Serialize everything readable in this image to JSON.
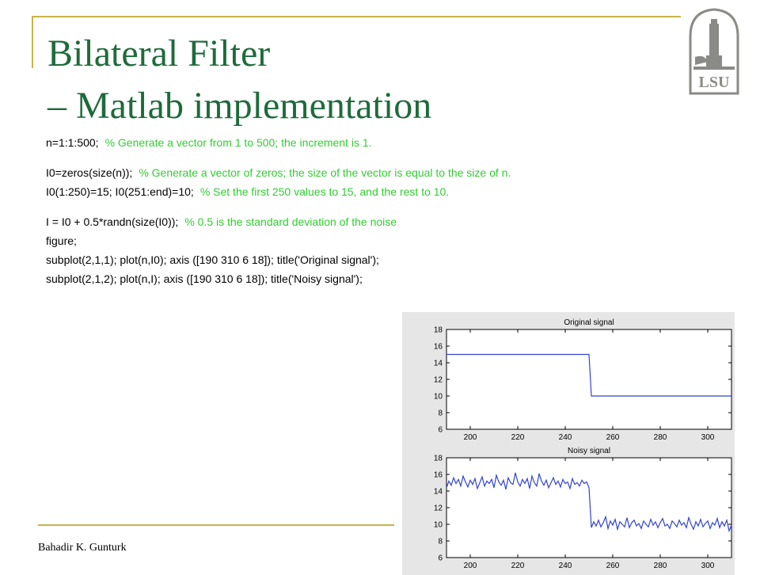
{
  "colors": {
    "title": "#1e6b3a",
    "accent_rule": "#c8b44a",
    "code": "#000000",
    "comment": "#33cc33",
    "plot_line": "#3344cc",
    "logo_fill": "#8a8a86"
  },
  "slide": {
    "title_line1": "Bilateral Filter",
    "title_line2": "– Matlab implementation",
    "footer": "Bahadir K. Gunturk",
    "logo_icon": "lsu-tower-logo",
    "logo_text": "LSU"
  },
  "code_lines": [
    {
      "code": "n=1:1:500;",
      "comment": "% Generate a vector from 1 to 500; the increment is 1."
    },
    {
      "code": "",
      "comment": ""
    },
    {
      "code": "I0=zeros(size(n));",
      "comment": "% Generate a vector of zeros; the size of the vector is equal to the size of n."
    },
    {
      "code": "I0(1:250)=15;  I0(251:end)=10;",
      "comment": "% Set the first 250 values to 15, and the rest to 10."
    },
    {
      "code": "",
      "comment": ""
    },
    {
      "code": "I = I0 + 0.5*randn(size(I0));",
      "comment": "% 0.5 is the standard deviation of the noise"
    },
    {
      "code": "figure;",
      "comment": ""
    },
    {
      "code": "subplot(2,1,1);  plot(n,I0);  axis ([190 310 6 18]);  title('Original signal');",
      "comment": ""
    },
    {
      "code": "subplot(2,1,2);  plot(n,I);  axis ([190 310 6 18]);  title('Noisy signal');",
      "comment": ""
    }
  ],
  "chart_data": [
    {
      "type": "line",
      "title": "Original signal",
      "xlim": [
        190,
        310
      ],
      "ylim": [
        6,
        18
      ],
      "xticks": [
        200,
        220,
        240,
        260,
        280,
        300
      ],
      "yticks": [
        6,
        8,
        10,
        12,
        14,
        16,
        18
      ],
      "grid": false,
      "series": [
        {
          "x": [
            190,
            250,
            251,
            310
          ],
          "y": [
            15,
            15,
            10,
            10
          ]
        }
      ]
    },
    {
      "type": "line",
      "title": "Noisy signal",
      "xlim": [
        190,
        310
      ],
      "ylim": [
        6,
        18
      ],
      "xticks": [
        200,
        220,
        240,
        260,
        280,
        300
      ],
      "yticks": [
        6,
        8,
        10,
        12,
        14,
        16,
        18
      ],
      "grid": false,
      "series": [
        {
          "x": [
            190,
            191,
            192,
            193,
            194,
            195,
            196,
            197,
            198,
            199,
            200,
            201,
            202,
            203,
            204,
            205,
            206,
            207,
            208,
            209,
            210,
            211,
            212,
            213,
            214,
            215,
            216,
            217,
            218,
            219,
            220,
            221,
            222,
            223,
            224,
            225,
            226,
            227,
            228,
            229,
            230,
            231,
            232,
            233,
            234,
            235,
            236,
            237,
            238,
            239,
            240,
            241,
            242,
            243,
            244,
            245,
            246,
            247,
            248,
            249,
            250,
            251,
            252,
            253,
            254,
            255,
            256,
            257,
            258,
            259,
            260,
            261,
            262,
            263,
            264,
            265,
            266,
            267,
            268,
            269,
            270,
            271,
            272,
            273,
            274,
            275,
            276,
            277,
            278,
            279,
            280,
            281,
            282,
            283,
            284,
            285,
            286,
            287,
            288,
            289,
            290,
            291,
            292,
            293,
            294,
            295,
            296,
            297,
            298,
            299,
            300,
            301,
            302,
            303,
            304,
            305,
            306,
            307,
            308,
            309,
            310
          ],
          "y": [
            14.4,
            15.2,
            14.7,
            15.6,
            14.9,
            15.4,
            14.6,
            15.8,
            15.1,
            14.5,
            15.3,
            14.8,
            15.5,
            14.3,
            15.0,
            15.7,
            14.6,
            15.2,
            14.9,
            15.4,
            14.4,
            15.9,
            15.1,
            14.7,
            15.3,
            14.2,
            15.6,
            15.0,
            14.8,
            16.2,
            15.1,
            14.6,
            15.4,
            14.9,
            15.5,
            14.3,
            15.8,
            15.0,
            14.6,
            16.1,
            15.2,
            14.7,
            15.3,
            14.4,
            15.0,
            15.6,
            14.8,
            15.2,
            14.5,
            15.4,
            14.9,
            15.1,
            14.3,
            15.5,
            14.8,
            15.0,
            14.6,
            15.3,
            14.9,
            15.1,
            14.4,
            9.6,
            10.3,
            9.8,
            10.5,
            9.7,
            10.2,
            10.9,
            9.5,
            10.4,
            9.9,
            10.6,
            9.4,
            10.3,
            10.0,
            9.7,
            10.8,
            9.6,
            10.2,
            10.5,
            9.8,
            10.1,
            9.5,
            10.4,
            10.0,
            9.7,
            10.6,
            9.9,
            10.3,
            9.6,
            10.2,
            10.7,
            9.8,
            10.0,
            9.5,
            10.4,
            10.1,
            9.7,
            10.5,
            9.9,
            10.2,
            9.6,
            10.8,
            10.0,
            9.4,
            10.3,
            9.8,
            10.6,
            9.7,
            10.1,
            10.4,
            9.5,
            10.2,
            9.9,
            10.7,
            9.6,
            10.3,
            9.8,
            10.5,
            9.2,
            9.9
          ]
        }
      ]
    }
  ]
}
